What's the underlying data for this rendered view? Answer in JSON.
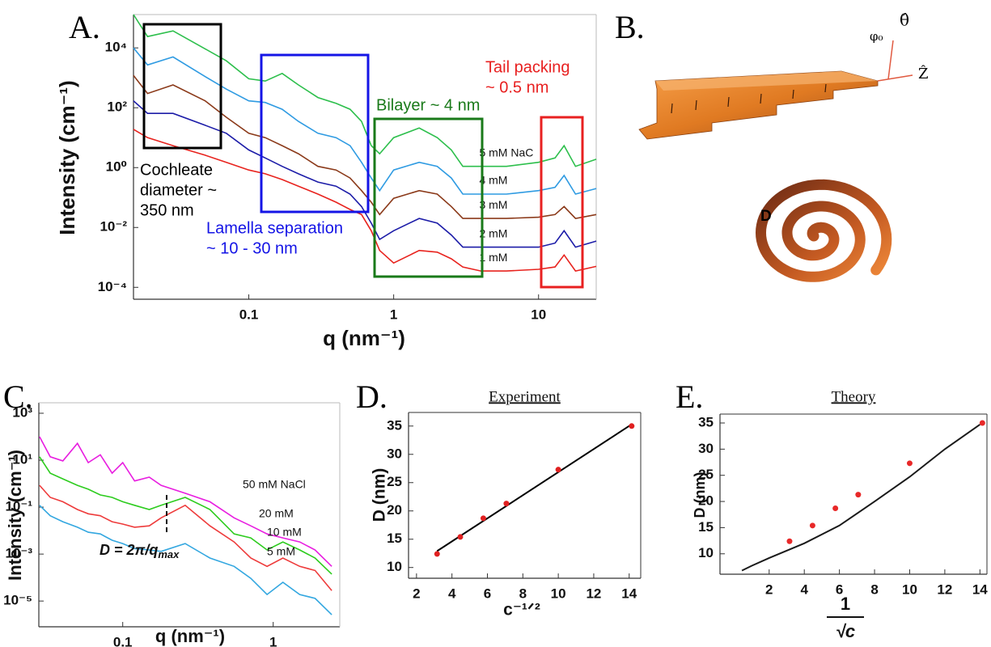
{
  "chart_data": [
    {
      "type": "line",
      "label": "A.",
      "xlabel": "q (nm⁻¹)",
      "ylabel": "Intensity (cm⁻¹)",
      "xscale": "log",
      "yscale": "log",
      "xlim": [
        0.016,
        25
      ],
      "ylim": [
        4e-05,
        130000.0
      ],
      "xticks": [
        0.1,
        1,
        10
      ],
      "yticks": [
        {
          "value": 0.0001,
          "label": "10⁻⁴"
        },
        {
          "value": 0.01,
          "label": "10⁻²"
        },
        {
          "value": 1,
          "label": "10⁰"
        },
        {
          "value": 100,
          "label": "10²"
        },
        {
          "value": 10000,
          "label": "10⁴"
        }
      ],
      "x": [
        0.016,
        0.02,
        0.03,
        0.05,
        0.07,
        0.1,
        0.13,
        0.17,
        0.22,
        0.3,
        0.4,
        0.5,
        0.6,
        0.7,
        0.8,
        1,
        1.5,
        2,
        2.5,
        3,
        4,
        6,
        10,
        13,
        15,
        18,
        25
      ],
      "series": [
        {
          "name": "5 mM NaC",
          "color": "#2dbf4c",
          "values": [
            130000.0,
            24000.0,
            37000.0,
            9300,
            3700,
            930,
            780,
            1400,
            580,
            220,
            140,
            89,
            35,
            5.4,
            2.9,
            10,
            21,
            10,
            3.9,
            1.1,
            1.1,
            1.1,
            1.5,
            2.1,
            5.4,
            1.1,
            1.9
          ]
        },
        {
          "name": "4 mM",
          "color": "#2f9be2",
          "values": [
            10000.0,
            2700,
            5000,
            1100,
            420,
            170,
            150,
            89,
            35,
            14,
            10,
            5.4,
            1.5,
            0.45,
            0.17,
            0.83,
            1.5,
            1.1,
            0.45,
            0.13,
            0.13,
            0.13,
            0.17,
            0.22,
            0.55,
            0.13,
            0.2
          ]
        },
        {
          "name": "3 mM",
          "color": "#8b3a1a",
          "values": [
            1200,
            300,
            580,
            170,
            48,
            14,
            10,
            5.4,
            2.9,
            1.1,
            0.83,
            0.45,
            0.17,
            0.07,
            0.027,
            0.094,
            0.17,
            0.13,
            0.05,
            0.02,
            0.02,
            0.02,
            0.022,
            0.027,
            0.05,
            0.02,
            0.027
          ]
        },
        {
          "name": "2 mM",
          "color": "#1c1ca8",
          "values": [
            170,
            65,
            65,
            26,
            14,
            3.9,
            2.1,
            1.1,
            0.62,
            0.33,
            0.24,
            0.13,
            0.05,
            0.014,
            0.004,
            0.0078,
            0.02,
            0.014,
            0.0056,
            0.0022,
            0.0022,
            0.0022,
            0.0022,
            0.003,
            0.0078,
            0.0022,
            0.0035
          ]
        },
        {
          "name": "1 mM",
          "color": "#e8231e",
          "values": [
            19,
            10,
            5.4,
            2.6,
            1.5,
            0.83,
            0.62,
            0.4,
            0.24,
            0.13,
            0.07,
            0.04,
            0.027,
            0.0078,
            0.0017,
            0.00065,
            0.0017,
            0.0015,
            0.0009,
            0.00048,
            0.00035,
            0.00035,
            0.0004,
            0.00048,
            0.0012,
            0.00035,
            0.0005
          ]
        }
      ],
      "annotations": [
        {
          "lines": [
            "Cochleate",
            "diameter ~",
            "350 nm"
          ],
          "color": "#000000"
        },
        {
          "lines": [
            "Lamella separation",
            "~ 10 - 30 nm"
          ],
          "color": "#1414e6"
        },
        {
          "lines": [
            "Bilayer ~ 4 nm"
          ],
          "color": "#1a7a1a"
        },
        {
          "lines": [
            "Tail packing",
            "~ 0.5 nm"
          ],
          "color": "#e82020"
        }
      ]
    },
    {
      "type": "line",
      "label": "C.",
      "xlabel": "q (nm⁻¹)",
      "ylabel": "Intensity (cm⁻¹)",
      "xscale": "log",
      "yscale": "log",
      "xlim": [
        0.0277,
        2.77
      ],
      "ylim": [
        8e-07,
        2800
      ],
      "xticks": [
        0.1,
        1
      ],
      "yticks": [
        {
          "value": 1e-05,
          "label": "10⁻⁵"
        },
        {
          "value": 0.001,
          "label": "10⁻³"
        },
        {
          "value": 0.1,
          "label": "10⁻¹"
        },
        {
          "value": 10,
          "label": "10¹"
        },
        {
          "value": 1000,
          "label": "10³"
        }
      ],
      "x": [
        0.028,
        0.033,
        0.04,
        0.05,
        0.059,
        0.071,
        0.085,
        0.1,
        0.12,
        0.15,
        0.18,
        0.26,
        0.38,
        0.55,
        0.71,
        0.91,
        1.16,
        1.5,
        1.9,
        2.45
      ],
      "series": [
        {
          "name": "50 mM NaCl",
          "color": "#e81ee0",
          "values": [
            100,
            14,
            9.3,
            52,
            7.9,
            17,
            2.8,
            7.9,
            1.3,
            1.9,
            0.85,
            0.39,
            0.17,
            0.035,
            0.016,
            0.0072,
            0.0049,
            0.0033,
            0.0015,
            0.0003
          ]
        },
        {
          "name": "20 mM",
          "color": "#2dcc1e",
          "values": [
            14,
            2.8,
            1.6,
            0.85,
            0.58,
            0.33,
            0.26,
            0.17,
            0.12,
            0.079,
            0.12,
            0.26,
            0.079,
            0.0072,
            0.0049,
            0.0015,
            0.0033,
            0.0015,
            0.00068,
            0.00014
          ]
        },
        {
          "name": "10 mM",
          "color": "#ee3b3b",
          "values": [
            0.85,
            0.26,
            0.17,
            0.079,
            0.052,
            0.043,
            0.024,
            0.019,
            0.014,
            0.016,
            0.035,
            0.12,
            0.016,
            0.0033,
            0.00068,
            0.0003,
            0.00068,
            0.0003,
            0.0002,
            2.8e-05
          ]
        },
        {
          "name": "5 mM",
          "color": "#33a7e0",
          "values": [
            0.12,
            0.043,
            0.024,
            0.014,
            0.0085,
            0.0072,
            0.0039,
            0.0028,
            0.0017,
            0.0015,
            0.0013,
            0.0028,
            0.00068,
            0.0003,
            9.3e-05,
            1.9e-05,
            6.3e-05,
            1.9e-05,
            1.3e-05,
            2.6e-06
          ]
        }
      ],
      "annotation": "D = 2π/q",
      "annotation_sub": "max"
    },
    {
      "type": "scatter",
      "label": "D.",
      "title": "Experiment",
      "xlabel": "c⁻¹ᐟ²",
      "ylabel": "D (nm)",
      "xlim": [
        1.55,
        14.65
      ],
      "ylim": [
        8.1,
        37.4
      ],
      "xticks": [
        2,
        4,
        6,
        8,
        10,
        12,
        14
      ],
      "yticks": [
        10,
        15,
        20,
        25,
        30,
        35
      ],
      "points": {
        "color": "#e02020",
        "x": [
          3.16,
          4.47,
          5.77,
          7.07,
          10,
          14.14
        ],
        "y": [
          12.4,
          15.4,
          18.7,
          21.3,
          27.3,
          35
        ]
      },
      "fit": {
        "color": "#000000",
        "x": [
          3.16,
          14.14
        ],
        "y": [
          12.9,
          35.3
        ]
      }
    },
    {
      "type": "scatter",
      "label": "E.",
      "title": "Theory",
      "xlabel_numerator": "1",
      "xlabel_denominator": "√c",
      "ylabel": "D (nm)",
      "xlim": [
        -0.8,
        14.4
      ],
      "ylim": [
        6.1,
        36.7
      ],
      "xticks": [
        2,
        4,
        6,
        8,
        10,
        12,
        14
      ],
      "yticks": [
        10,
        15,
        20,
        25,
        30,
        35
      ],
      "points": {
        "color": "#e82828",
        "x": [
          3.16,
          4.47,
          5.77,
          7.07,
          10,
          14.14
        ],
        "y": [
          12.4,
          15.4,
          18.7,
          21.3,
          27.3,
          35
        ]
      },
      "fit": {
        "color": "#1a1a1a",
        "x": [
          0.45,
          1,
          2,
          4,
          6,
          8,
          10,
          12,
          14
        ],
        "y": [
          6.8,
          7.7,
          9.2,
          12,
          15.4,
          20,
          24.7,
          30,
          34.7
        ]
      }
    }
  ],
  "diagram": {
    "label": "B.",
    "theta": "θ̂",
    "phi": "φ₀",
    "z": "Ẑ",
    "d": "D"
  }
}
